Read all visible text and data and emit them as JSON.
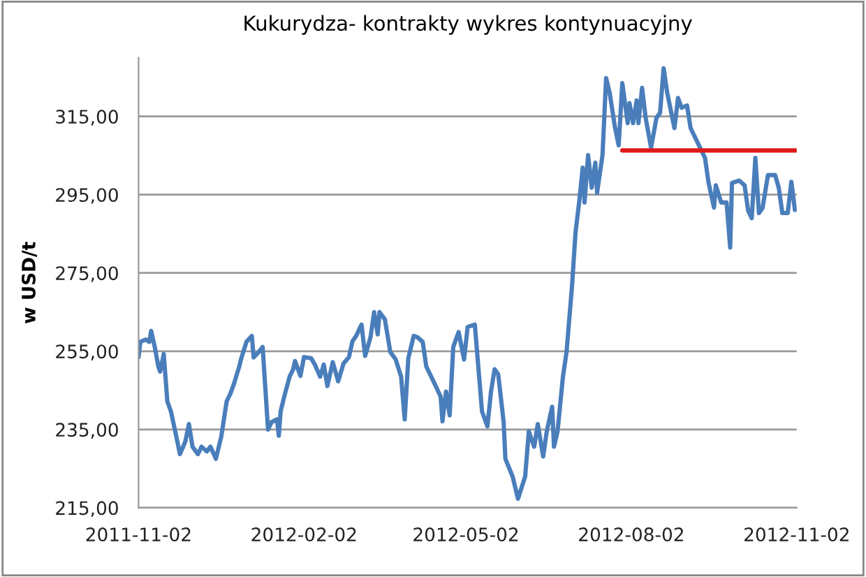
{
  "chart_data": {
    "type": "line",
    "title": "Kukurydza- kontrakty wykres kontynuacyjny",
    "ylabel": "w USD/t",
    "xlim": [
      "2011-11-02",
      "2012-11-02"
    ],
    "xticks": [
      "2011-11-02",
      "2012-02-02",
      "2012-05-02",
      "2012-08-02",
      "2012-11-02"
    ],
    "ylim": [
      215,
      330
    ],
    "yticks": [
      {
        "value": 215,
        "label": "215,00"
      },
      {
        "value": 235,
        "label": "235,00"
      },
      {
        "value": 255,
        "label": "255,00"
      },
      {
        "value": 275,
        "label": "275,00"
      },
      {
        "value": 295,
        "label": "295,00"
      },
      {
        "value": 315,
        "label": "315,00"
      }
    ],
    "grid": "y",
    "legend": false,
    "marker": "none",
    "line_style": "solid",
    "series": [
      {
        "color": "#4a7ebb",
        "x": [
          "2011-11-02",
          "2011-11-03",
          "2011-11-06",
          "2011-11-08",
          "2011-11-09",
          "2011-11-11",
          "2011-11-13",
          "2011-11-14",
          "2011-11-16",
          "2011-11-18",
          "2011-11-20",
          "2011-11-23",
          "2011-11-25",
          "2011-11-28",
          "2011-11-30",
          "2011-12-02",
          "2011-12-05",
          "2011-12-07",
          "2011-12-10",
          "2011-12-12",
          "2011-12-15",
          "2011-12-18",
          "2011-12-21",
          "2011-12-23",
          "2011-12-25",
          "2011-12-28",
          "2011-12-29",
          "2012-01-01",
          "2012-01-04",
          "2012-01-05",
          "2012-01-08",
          "2012-01-10",
          "2012-01-13",
          "2012-01-15",
          "2012-01-18",
          "2012-01-19",
          "2012-01-20",
          "2012-01-22",
          "2012-01-25",
          "2012-01-27",
          "2012-01-28",
          "2012-01-31",
          "2012-02-02",
          "2012-02-06",
          "2012-02-08",
          "2012-02-11",
          "2012-02-13",
          "2012-02-15",
          "2012-02-18",
          "2012-02-21",
          "2012-02-24",
          "2012-02-27",
          "2012-02-29",
          "2012-03-02",
          "2012-03-05",
          "2012-03-07",
          "2012-03-10",
          "2012-03-12",
          "2012-03-14",
          "2012-03-15",
          "2012-03-18",
          "2012-03-21",
          "2012-03-24",
          "2012-03-27",
          "2012-03-29",
          "2012-03-31",
          "2012-04-03",
          "2012-04-05",
          "2012-04-08",
          "2012-04-10",
          "2012-04-14",
          "2012-04-18",
          "2012-04-19",
          "2012-04-21",
          "2012-04-23",
          "2012-04-25",
          "2012-04-28",
          "2012-05-01",
          "2012-05-03",
          "2012-05-07",
          "2012-05-11",
          "2012-05-14",
          "2012-05-16",
          "2012-05-18",
          "2012-05-20",
          "2012-05-23",
          "2012-05-24",
          "2012-05-28",
          "2012-05-31",
          "2012-06-04",
          "2012-06-06",
          "2012-06-09",
          "2012-06-11",
          "2012-06-14",
          "2012-06-16",
          "2012-06-19",
          "2012-06-20",
          "2012-06-22",
          "2012-06-25",
          "2012-06-27",
          "2012-06-30",
          "2012-07-02",
          "2012-07-04",
          "2012-07-06",
          "2012-07-07",
          "2012-07-09",
          "2012-07-11",
          "2012-07-13",
          "2012-07-14",
          "2012-07-17",
          "2012-07-19",
          "2012-07-21",
          "2012-07-24",
          "2012-07-26",
          "2012-07-28",
          "2012-07-31",
          "2012-08-01",
          "2012-08-03",
          "2012-08-05",
          "2012-08-06",
          "2012-08-08",
          "2012-08-10",
          "2012-08-13",
          "2012-08-16",
          "2012-08-18",
          "2012-08-20",
          "2012-08-22",
          "2012-08-26",
          "2012-08-28",
          "2012-08-30",
          "2012-09-02",
          "2012-09-04",
          "2012-09-08",
          "2012-09-12",
          "2012-09-14",
          "2012-09-17",
          "2012-09-18",
          "2012-09-21",
          "2012-09-24",
          "2012-09-26",
          "2012-09-27",
          "2012-10-01",
          "2012-10-04",
          "2012-10-06",
          "2012-10-08",
          "2012-10-10",
          "2012-10-12",
          "2012-10-14",
          "2012-10-17",
          "2012-10-21",
          "2012-10-23",
          "2012-10-25",
          "2012-10-28",
          "2012-10-30",
          "2012-11-01"
        ],
        "values": [
          253.5,
          257.4,
          258.0,
          257.4,
          260.2,
          256.1,
          251.1,
          249.8,
          254.3,
          242.2,
          239.6,
          233.2,
          228.7,
          231.9,
          236.4,
          230.6,
          228.7,
          230.6,
          229.4,
          230.6,
          227.5,
          233.2,
          242.2,
          244.1,
          246.6,
          251.1,
          253.0,
          257.4,
          258.9,
          253.4,
          254.9,
          256.1,
          235.0,
          236.9,
          237.6,
          233.4,
          239.6,
          243.4,
          248.5,
          250.4,
          252.5,
          248.7,
          253.5,
          253.2,
          251.6,
          248.5,
          251.6,
          246.1,
          252.2,
          247.3,
          251.9,
          253.5,
          257.6,
          258.9,
          261.8,
          253.8,
          258.6,
          265.0,
          259.3,
          265.0,
          263.1,
          254.8,
          252.9,
          248.5,
          237.6,
          253.2,
          258.9,
          258.6,
          257.4,
          251.1,
          247.3,
          243.4,
          237.1,
          244.7,
          238.6,
          256.1,
          259.9,
          252.9,
          261.2,
          261.8,
          239.6,
          235.8,
          244.7,
          250.4,
          249.1,
          237.0,
          227.5,
          223.0,
          217.3,
          223.0,
          234.5,
          230.6,
          236.4,
          228.1,
          234.5,
          240.8,
          230.6,
          234.5,
          248.5,
          254.8,
          271.4,
          285.4,
          293.0,
          301.9,
          293.0,
          305.1,
          296.8,
          303.2,
          295.5,
          305.1,
          324.8,
          321.0,
          312.0,
          307.6,
          323.5,
          313.3,
          318.4,
          313.3,
          319.1,
          313.3,
          322.3,
          314.6,
          307.0,
          314.6,
          315.9,
          327.3,
          321.0,
          312.0,
          319.7,
          317.2,
          317.8,
          312.0,
          308.2,
          304.4,
          298.0,
          291.7,
          297.4,
          293.0,
          293.0,
          281.5,
          298.0,
          298.6,
          297.4,
          290.9,
          289.0,
          304.4,
          290.3,
          291.6,
          300.0,
          300.0,
          296.8,
          290.3,
          290.3,
          298.3,
          291.1
        ]
      },
      {
        "color": "#e0191b",
        "x": [
          "2012-07-28",
          "2012-11-02"
        ],
        "values": [
          306.3,
          306.3
        ]
      }
    ]
  }
}
